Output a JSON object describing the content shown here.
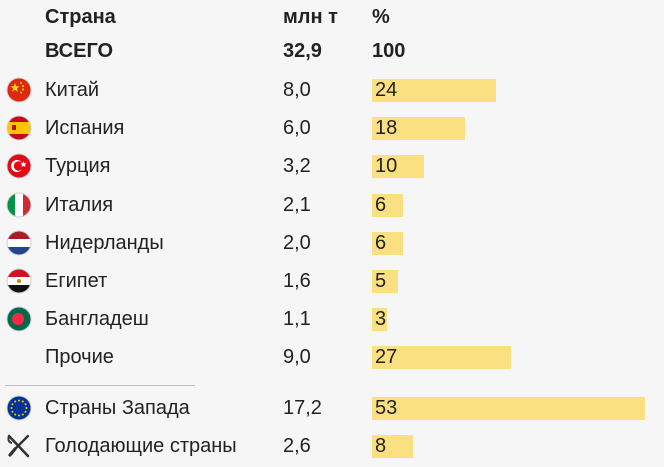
{
  "header": {
    "country": "Страна",
    "mt": "млн т",
    "pct": "%"
  },
  "total": {
    "country": "ВСЕГО",
    "mt": "32,9",
    "pct": "100"
  },
  "chart_data": {
    "type": "bar",
    "categories": [
      "Китай",
      "Испания",
      "Турция",
      "Италия",
      "Нидерланды",
      "Египет",
      "Бангладеш",
      "Прочие",
      "Страны Запада",
      "Голодающие страны"
    ],
    "values_mt": [
      "8,0",
      "6,0",
      "3,2",
      "2,1",
      "2,0",
      "1,6",
      "1,1",
      "9,0",
      "17,2",
      "2,6"
    ],
    "values_pct": [
      24,
      18,
      10,
      6,
      6,
      5,
      3,
      27,
      53,
      8
    ],
    "flags": [
      "china-flag-icon",
      "spain-flag-icon",
      "turkey-flag-icon",
      "italy-flag-icon",
      "netherlands-flag-icon",
      "egypt-flag-icon",
      "bangladesh-flag-icon",
      "",
      "eu-flag-icon",
      "fork-knife-icon"
    ],
    "bar_color": "#fbe081"
  }
}
